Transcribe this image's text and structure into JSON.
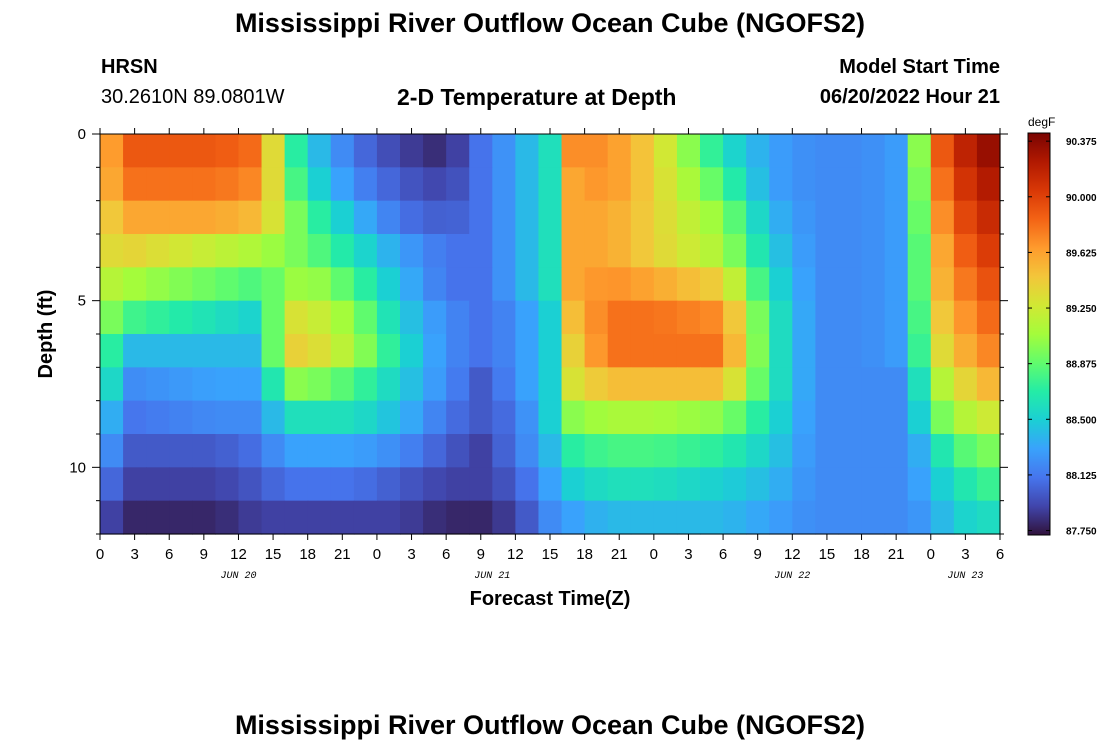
{
  "header": {
    "title": "Mississippi River Outflow Ocean Cube (NGOFS2)",
    "station_name": "HRSN",
    "station_coords": "30.2610N  89.0801W",
    "plot_title": "2-D Temperature at Depth",
    "model_start_label": "Model Start Time",
    "model_start_value": "06/20/2022 Hour 21"
  },
  "footer": {
    "title": "Mississippi River Outflow Ocean Cube (NGOFS2)"
  },
  "colors": {
    "colormap": [
      "#30123b",
      "#4145ab",
      "#4675ed",
      "#39a2fc",
      "#1bcfd4",
      "#24eca6",
      "#61fc6c",
      "#a4fc3b",
      "#d1e834",
      "#f3c63a",
      "#fe9b2d",
      "#f36315",
      "#d93806",
      "#b11901",
      "#7a0402"
    ]
  },
  "chart_data": {
    "type": "heatmap",
    "title": "2-D Temperature at Depth",
    "xlabel": "Forecast Time(Z)",
    "ylabel": "Depth (ft)",
    "x_unit": "hours since Jun 20 00Z",
    "x_range": [
      0,
      78
    ],
    "x_tick_labels": [
      "0",
      "3",
      "6",
      "9",
      "12",
      "15",
      "18",
      "21",
      "0",
      "3",
      "6",
      "9",
      "12",
      "15",
      "18",
      "21",
      "0",
      "3",
      "6",
      "9",
      "12",
      "15",
      "18",
      "21",
      "0",
      "3",
      "6"
    ],
    "date_labels": [
      {
        "label": "JUN 20",
        "hour": 12
      },
      {
        "label": "JUN 21",
        "hour": 34
      },
      {
        "label": "JUN 22",
        "hour": 60
      },
      {
        "label": "JUN 23",
        "hour": 75
      }
    ],
    "y_unit": "ft",
    "y_range": [
      0,
      12
    ],
    "y_ticks": [
      0,
      5,
      10
    ],
    "y_tick_labels": [
      "0",
      "5",
      "10"
    ],
    "colorbar": {
      "unit": "degF",
      "range": [
        87.72,
        90.43
      ],
      "ticks": [
        "90.375",
        "90.000",
        "89.625",
        "89.250",
        "88.875",
        "88.500",
        "88.125",
        "87.750"
      ],
      "tick_values": [
        90.375,
        90.0,
        89.625,
        89.25,
        88.875,
        88.5,
        88.125,
        87.75
      ]
    },
    "depth_levels_ft": [
      0.5,
      1.5,
      2.5,
      3.5,
      4.5,
      5.5,
      6.5,
      7.5,
      8.5,
      9.5,
      10.5,
      11.5
    ],
    "time_profile_hours": [
      0,
      2,
      10,
      14,
      16,
      18,
      22,
      26,
      30,
      33,
      36,
      39,
      41,
      44,
      48,
      54,
      58,
      62,
      66,
      70,
      72,
      74,
      78
    ],
    "values_degF": [
      [
        89.4,
        89.9,
        89.9,
        89.8,
        88.9,
        88.5,
        88.1,
        87.9,
        87.8,
        88.1,
        88.3,
        88.6,
        89.7,
        89.7,
        89.4,
        88.6,
        88.3,
        88.2,
        88.2,
        88.3,
        89.7,
        90.1,
        90.4
      ],
      [
        89.4,
        89.8,
        89.8,
        89.7,
        89.0,
        88.6,
        88.2,
        88.0,
        87.9,
        88.1,
        88.3,
        88.6,
        89.6,
        89.7,
        89.4,
        88.8,
        88.3,
        88.2,
        88.2,
        88.3,
        89.6,
        90.0,
        90.3
      ],
      [
        89.3,
        89.6,
        89.6,
        89.5,
        89.1,
        88.8,
        88.4,
        88.1,
        88.0,
        88.1,
        88.3,
        88.6,
        89.6,
        89.6,
        89.4,
        89.0,
        88.4,
        88.2,
        88.2,
        88.3,
        89.5,
        89.9,
        90.2
      ],
      [
        89.3,
        89.4,
        89.2,
        89.1,
        89.0,
        88.9,
        88.6,
        88.3,
        88.1,
        88.1,
        88.3,
        88.6,
        89.6,
        89.6,
        89.4,
        89.1,
        88.5,
        88.2,
        88.2,
        88.3,
        89.4,
        89.8,
        90.1
      ],
      [
        89.2,
        89.1,
        88.9,
        88.8,
        89.0,
        89.1,
        88.8,
        88.4,
        88.1,
        88.1,
        88.3,
        88.6,
        89.6,
        89.7,
        89.6,
        89.4,
        88.6,
        88.2,
        88.2,
        88.3,
        89.4,
        89.7,
        90.0
      ],
      [
        89.1,
        88.8,
        88.6,
        88.5,
        89.3,
        89.3,
        89.0,
        88.5,
        88.2,
        88.1,
        88.2,
        88.5,
        89.5,
        89.8,
        89.8,
        89.7,
        88.7,
        88.2,
        88.2,
        88.3,
        89.3,
        89.6,
        89.9
      ],
      [
        89.0,
        88.4,
        88.4,
        88.4,
        89.4,
        89.4,
        89.1,
        88.6,
        88.2,
        88.1,
        88.2,
        88.5,
        89.4,
        89.8,
        89.8,
        89.8,
        88.7,
        88.2,
        88.2,
        88.3,
        89.2,
        89.5,
        89.8
      ],
      [
        88.9,
        88.2,
        88.3,
        88.3,
        89.0,
        89.0,
        88.8,
        88.5,
        88.2,
        88.0,
        88.2,
        88.5,
        89.3,
        89.5,
        89.5,
        89.5,
        88.7,
        88.2,
        88.2,
        88.2,
        89.0,
        89.3,
        89.6
      ],
      [
        88.6,
        88.1,
        88.2,
        88.2,
        88.6,
        88.6,
        88.6,
        88.4,
        88.1,
        88.0,
        88.1,
        88.5,
        89.0,
        89.1,
        89.1,
        89.0,
        88.6,
        88.2,
        88.2,
        88.2,
        88.8,
        89.1,
        89.3
      ],
      [
        88.4,
        88.0,
        88.0,
        88.1,
        88.3,
        88.3,
        88.3,
        88.2,
        88.0,
        87.9,
        88.1,
        88.4,
        88.7,
        88.8,
        88.8,
        88.7,
        88.5,
        88.2,
        88.2,
        88.2,
        88.5,
        88.8,
        89.0
      ],
      [
        88.2,
        87.9,
        87.9,
        88.0,
        88.1,
        88.1,
        88.1,
        88.0,
        87.9,
        87.9,
        88.0,
        88.3,
        88.5,
        88.6,
        88.6,
        88.5,
        88.4,
        88.2,
        88.2,
        88.2,
        88.4,
        88.6,
        88.8
      ],
      [
        88.0,
        87.8,
        87.8,
        87.9,
        87.9,
        87.9,
        87.9,
        87.9,
        87.8,
        87.8,
        87.9,
        88.2,
        88.3,
        88.4,
        88.4,
        88.4,
        88.3,
        88.2,
        88.2,
        88.2,
        88.3,
        88.5,
        88.6
      ]
    ]
  }
}
